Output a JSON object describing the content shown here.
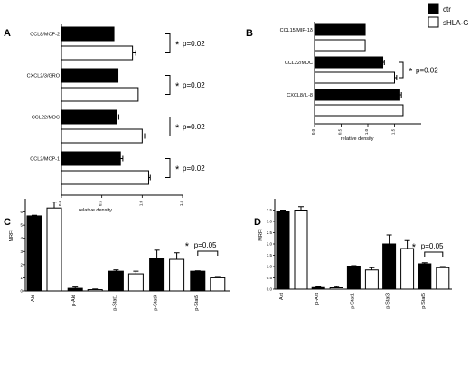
{
  "legend": {
    "items": [
      {
        "label": "ctr",
        "color": "#000000"
      },
      {
        "label": "sHLA-G",
        "color": "#ffffff"
      }
    ]
  },
  "chart_data": [
    {
      "id": "A",
      "type": "bar",
      "orientation": "horizontal",
      "panel_label": "A",
      "categories": [
        "CCL8/MCP-2",
        "CXCL2/3/GRO",
        "CCL22/MDC",
        "CCL2/MCP-1"
      ],
      "series": [
        {
          "name": "ctr",
          "values": [
            0.65,
            0.7,
            0.68,
            0.73
          ],
          "errors": [
            0.0,
            0.0,
            0.03,
            0.03
          ]
        },
        {
          "name": "sHLA-G",
          "values": [
            0.88,
            0.95,
            1.0,
            1.08
          ],
          "errors": [
            0.04,
            0.0,
            0.03,
            0.02
          ]
        }
      ],
      "xlabel": "relative density",
      "xlim": [
        0.0,
        1.5
      ],
      "xticks": [
        "0.0",
        "0.5",
        "1.0",
        "1.5"
      ],
      "annotations": [
        {
          "star": "*",
          "text": "p=0.02"
        },
        {
          "star": "*",
          "text": "p=0.02"
        },
        {
          "star": "*",
          "text": "p=0.02"
        },
        {
          "star": "*",
          "text": "p=0.02"
        }
      ]
    },
    {
      "id": "B",
      "type": "bar",
      "orientation": "horizontal",
      "panel_label": "B",
      "categories": [
        "CCL15/MIP-1δ",
        "CCL22/MDC",
        "CXCL8/IL-8"
      ],
      "series": [
        {
          "name": "ctr",
          "values": [
            0.95,
            1.28,
            1.6
          ],
          "errors": [
            0.0,
            0.03,
            0.03
          ]
        },
        {
          "name": "sHLA-G",
          "values": [
            0.95,
            1.5,
            1.66
          ],
          "errors": [
            0.0,
            0.04,
            0.0
          ]
        }
      ],
      "xlabel": "relative density",
      "xlim": [
        0.0,
        2.0
      ],
      "xticks": [
        "0.0",
        "0.5",
        "1.0",
        "1.5"
      ],
      "annotations": [
        {
          "star": "*",
          "text": "p=0.02"
        }
      ]
    },
    {
      "id": "C",
      "type": "bar",
      "orientation": "vertical",
      "panel_label": "C",
      "categories": [
        "Akt",
        "p-Akt",
        "p-Stat1",
        "p-Stat3",
        "p-Stat5"
      ],
      "series": [
        {
          "name": "ctr",
          "values": [
            5.7,
            0.2,
            1.5,
            2.5,
            1.5
          ],
          "errors": [
            0.05,
            0.1,
            0.1,
            0.6,
            0.03
          ]
        },
        {
          "name": "sHLA-G",
          "values": [
            6.3,
            0.1,
            1.3,
            2.4,
            1.0
          ],
          "errors": [
            0.45,
            0.05,
            0.2,
            0.5,
            0.1
          ]
        }
      ],
      "ylabel": "MRFI",
      "ylim": [
        0,
        7
      ],
      "yticks": [
        "0",
        "1",
        "2",
        "3",
        "4",
        "5",
        "6"
      ],
      "annotations": [
        {
          "star": "*",
          "text": "p=0.05"
        }
      ]
    },
    {
      "id": "D",
      "type": "bar",
      "orientation": "vertical",
      "panel_label": "D",
      "categories": [
        "Akt",
        "p-Akt",
        "p-Stat1",
        "p-Stat3",
        "p-Stat5"
      ],
      "series": [
        {
          "name": "ctr",
          "values": [
            3.45,
            0.07,
            1.02,
            2.0,
            1.12
          ],
          "errors": [
            0.05,
            0.03,
            0.02,
            0.4,
            0.05
          ]
        },
        {
          "name": "sHLA-G",
          "values": [
            3.5,
            0.06,
            0.85,
            1.8,
            0.95
          ],
          "errors": [
            0.15,
            0.05,
            0.1,
            0.35,
            0.05
          ]
        }
      ],
      "ylabel": "MRFI",
      "ylim": [
        0,
        4
      ],
      "yticks": [
        "0.0",
        "0.5",
        "1.0",
        "1.5",
        "2.0",
        "2.5",
        "3.0",
        "3.5"
      ],
      "annotations": [
        {
          "star": "*",
          "text": "p=0.05"
        }
      ]
    }
  ]
}
